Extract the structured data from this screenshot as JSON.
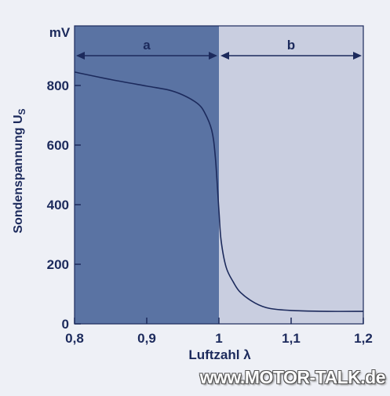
{
  "chart_data": {
    "type": "line",
    "y_unit": "mV",
    "ylabel_main": "Sondenspannung U",
    "ylabel_sub": "S",
    "xlabel": "Luftzahl λ",
    "xlim": [
      0.8,
      1.2
    ],
    "ylim": [
      0,
      1000
    ],
    "x_ticks": [
      {
        "value": 0.8,
        "label": "0,8"
      },
      {
        "value": 0.9,
        "label": "0,9"
      },
      {
        "value": 1.0,
        "label": "1"
      },
      {
        "value": 1.1,
        "label": "1,1"
      },
      {
        "value": 1.2,
        "label": "1,2"
      }
    ],
    "y_ticks": [
      {
        "value": 0,
        "label": "0"
      },
      {
        "value": 200,
        "label": "200"
      },
      {
        "value": 400,
        "label": "400"
      },
      {
        "value": 600,
        "label": "600"
      },
      {
        "value": 800,
        "label": "800"
      }
    ],
    "regions": [
      {
        "label": "a",
        "from": 0.8,
        "to": 1.0,
        "color": "#5a73a3"
      },
      {
        "label": "b",
        "from": 1.0,
        "to": 1.2,
        "color": "#c9cee0"
      }
    ],
    "series": [
      {
        "color": "#1c2a5c",
        "points": [
          [
            0.8,
            845
          ],
          [
            0.85,
            820
          ],
          [
            0.9,
            798
          ],
          [
            0.93,
            785
          ],
          [
            0.95,
            768
          ],
          [
            0.97,
            740
          ],
          [
            0.98,
            710
          ],
          [
            0.99,
            650
          ],
          [
            0.995,
            560
          ],
          [
            1.0,
            380
          ],
          [
            1.003,
            280
          ],
          [
            1.01,
            190
          ],
          [
            1.02,
            140
          ],
          [
            1.03,
            105
          ],
          [
            1.05,
            70
          ],
          [
            1.07,
            52
          ],
          [
            1.1,
            45
          ],
          [
            1.15,
            42
          ],
          [
            1.2,
            42
          ]
        ]
      }
    ],
    "grid": false,
    "legend": "none"
  },
  "watermark": "www.MOTOR-TALK.de"
}
